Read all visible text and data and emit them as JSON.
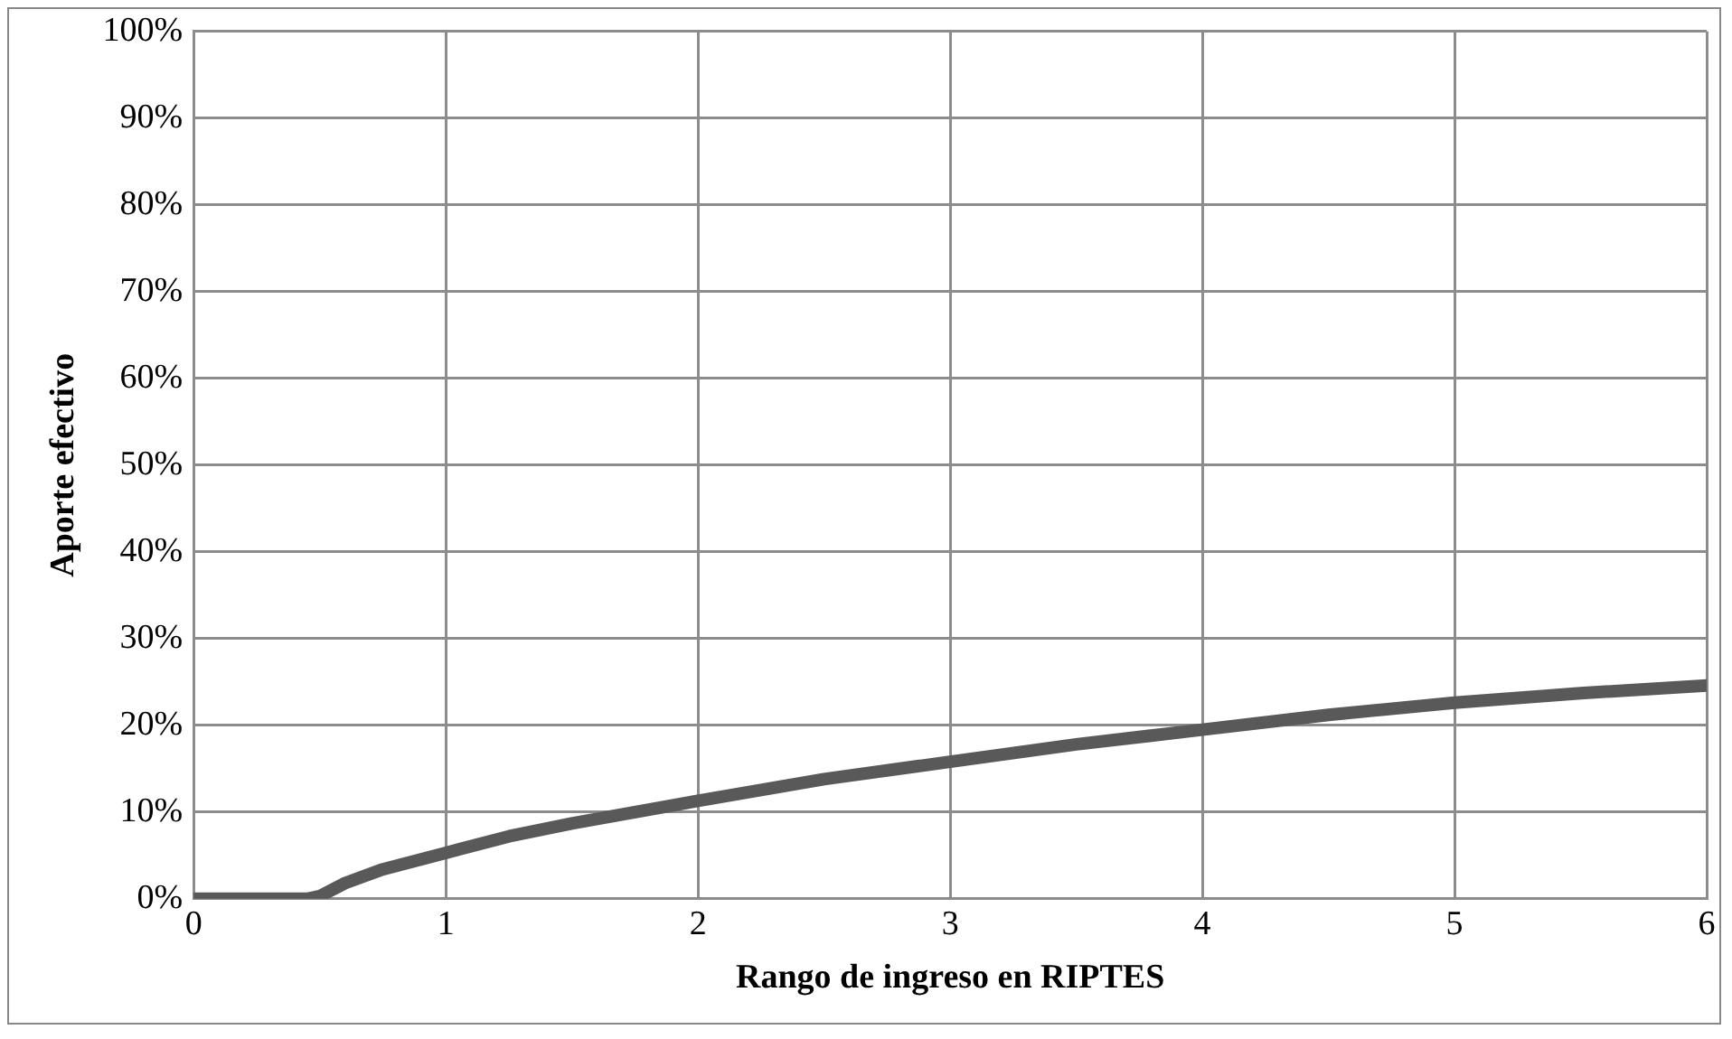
{
  "chart_data": {
    "type": "line",
    "xlabel": "Rango de ingreso en RIPTES",
    "ylabel": "Aporte efectivo",
    "x": [
      0,
      0.45,
      0.5,
      0.6,
      0.75,
      1,
      1.25,
      1.5,
      2,
      2.5,
      3,
      3.5,
      4,
      4.5,
      5,
      5.5,
      6
    ],
    "series": [
      {
        "color": "#595959",
        "values": [
          0,
          0,
          0.3,
          1.8,
          3.4,
          5.3,
          7.2,
          8.7,
          11.3,
          13.8,
          15.8,
          17.8,
          19.5,
          21.2,
          22.6,
          23.7,
          24.6
        ]
      }
    ],
    "xlim": [
      0,
      6
    ],
    "xticks": [
      0,
      1,
      2,
      3,
      4,
      5,
      6
    ],
    "ylim": [
      0,
      100
    ],
    "yticks": [
      {
        "value": 0,
        "label": "0%"
      },
      {
        "value": 10,
        "label": "10%"
      },
      {
        "value": 20,
        "label": "20%"
      },
      {
        "value": 30,
        "label": "30%"
      },
      {
        "value": 40,
        "label": "40%"
      },
      {
        "value": 50,
        "label": "50%"
      },
      {
        "value": 60,
        "label": "60%"
      },
      {
        "value": 70,
        "label": "70%"
      },
      {
        "value": 80,
        "label": "80%"
      },
      {
        "value": 90,
        "label": "90%"
      },
      {
        "value": 100,
        "label": "100%"
      }
    ],
    "grid": true,
    "legend": false,
    "marker": "none",
    "line_style": "solid"
  }
}
